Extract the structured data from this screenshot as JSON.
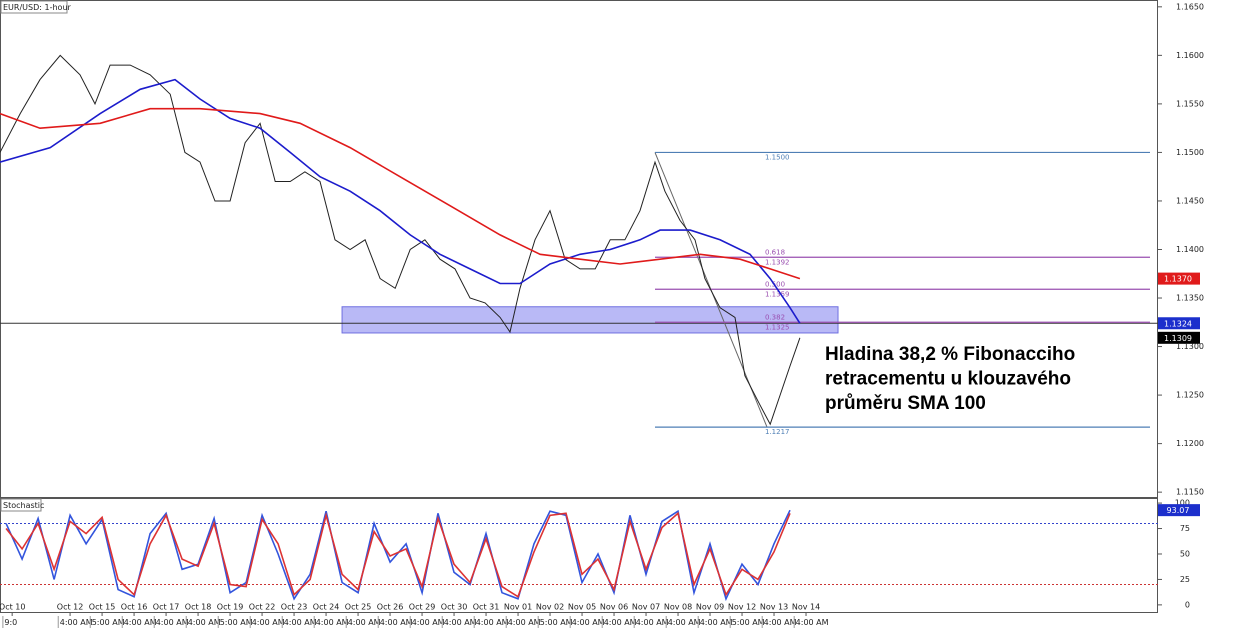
{
  "chart_data": [
    {
      "type": "line",
      "title": "EUR/USD: 1-hour",
      "xlim": [
        -0.19,
        36
      ],
      "xticks": [
        {
          "value": 0.19,
          "label": "Oct 10"
        },
        {
          "value": 2,
          "label": "Oct 12"
        },
        {
          "value": 3,
          "label": "Oct 15"
        },
        {
          "value": 4,
          "label": "Oct 16"
        },
        {
          "value": 5,
          "label": "Oct 17"
        },
        {
          "value": 6,
          "label": "Oct 18"
        },
        {
          "value": 7,
          "label": "Oct 19"
        },
        {
          "value": 8,
          "label": "Oct 22"
        },
        {
          "value": 9,
          "label": "Oct 23"
        },
        {
          "value": 10,
          "label": "Oct 24"
        },
        {
          "value": 11,
          "label": "Oct 25"
        },
        {
          "value": 12,
          "label": "Oct 26"
        },
        {
          "value": 13,
          "label": "Oct 29"
        },
        {
          "value": 14,
          "label": "Oct 30"
        },
        {
          "value": 15,
          "label": "Oct 31"
        },
        {
          "value": 16,
          "label": "Nov 01"
        },
        {
          "value": 17,
          "label": "Nov 02"
        },
        {
          "value": 18,
          "label": "Nov 05"
        },
        {
          "value": 19,
          "label": "Nov 06"
        },
        {
          "value": 20,
          "label": "Nov 07"
        },
        {
          "value": 21,
          "label": "Nov 08"
        },
        {
          "value": 22,
          "label": "Nov 09"
        },
        {
          "value": 23,
          "label": "Nov 12"
        },
        {
          "value": 24,
          "label": "Nov 13"
        },
        {
          "value": 25,
          "label": "Nov 14"
        }
      ],
      "time_ticks": [
        {
          "value": -0.1,
          "label": "9:0"
        },
        {
          "value": 1.63,
          "label": "4:00 AM"
        },
        {
          "value": 2.63,
          "label": "5:00 AM"
        },
        {
          "value": 3.63,
          "label": "4:00 AM"
        },
        {
          "value": 4.63,
          "label": "4:00 AM"
        },
        {
          "value": 5.63,
          "label": "4:00 AM"
        },
        {
          "value": 6.63,
          "label": "5:00 AM"
        },
        {
          "value": 7.63,
          "label": "4:00 AM"
        },
        {
          "value": 8.63,
          "label": "4:00 AM"
        },
        {
          "value": 9.63,
          "label": "4:00 AM"
        },
        {
          "value": 10.63,
          "label": "4:00 AM"
        },
        {
          "value": 11.63,
          "label": "4:00 AM"
        },
        {
          "value": 12.63,
          "label": "4:00 AM"
        },
        {
          "value": 13.63,
          "label": "4:00 AM"
        },
        {
          "value": 14.63,
          "label": "4:00 AM"
        },
        {
          "value": 15.63,
          "label": "4:00 AM"
        },
        {
          "value": 16.63,
          "label": "5:00 AM"
        },
        {
          "value": 17.63,
          "label": "4:00 AM"
        },
        {
          "value": 18.63,
          "label": "4:00 AM"
        },
        {
          "value": 19.63,
          "label": "4:00 AM"
        },
        {
          "value": 20.63,
          "label": "4:00 AM"
        },
        {
          "value": 21.63,
          "label": "4:00 AM"
        },
        {
          "value": 22.63,
          "label": "5:00 AM"
        },
        {
          "value": 23.63,
          "label": "4:00 AM"
        },
        {
          "value": 24.63,
          "label": "4:00 AM"
        }
      ],
      "ylim": [
        1.1145,
        1.1656
      ],
      "yticks": [
        {
          "value": 1.115,
          "label": "1.1150"
        },
        {
          "value": 1.12,
          "label": "1.1200"
        },
        {
          "value": 1.125,
          "label": "1.1250"
        },
        {
          "value": 1.13,
          "label": "1.1300"
        },
        {
          "value": 1.135,
          "label": "1.1350"
        },
        {
          "value": 1.14,
          "label": "1.1400"
        },
        {
          "value": 1.145,
          "label": "1.1450"
        },
        {
          "value": 1.15,
          "label": "1.1500"
        },
        {
          "value": 1.155,
          "label": "1.1550"
        },
        {
          "value": 1.16,
          "label": "1.1600"
        },
        {
          "value": 1.165,
          "label": "1.1650"
        }
      ],
      "series": [
        {
          "color": "#222222",
          "x": [
            -0.19,
            0.44,
            1.06,
            1.69,
            2.31,
            2.78,
            3.25,
            3.88,
            4.5,
            5.13,
            5.59,
            6.06,
            6.53,
            7,
            7.47,
            7.94,
            8.41,
            8.88,
            9.34,
            9.81,
            10.28,
            10.75,
            11.22,
            11.69,
            12.16,
            12.63,
            13.09,
            13.56,
            14.03,
            14.5,
            14.97,
            15.44,
            15.75,
            16.06,
            16.53,
            17,
            17.47,
            17.94,
            18.41,
            18.88,
            19.34,
            19.81,
            20.28,
            20.59,
            21.06,
            21.53,
            21.84,
            22.31,
            22.78,
            23.09,
            23.56,
            23.88,
            24.19,
            24.5,
            24.81
          ],
          "values": [
            1.15,
            1.154,
            1.1575,
            1.16,
            1.158,
            1.155,
            1.159,
            1.159,
            1.158,
            1.156,
            1.15,
            1.149,
            1.145,
            1.145,
            1.151,
            1.153,
            1.147,
            1.147,
            1.148,
            1.147,
            1.141,
            1.14,
            1.141,
            1.137,
            1.136,
            1.14,
            1.141,
            1.139,
            1.138,
            1.135,
            1.1345,
            1.133,
            1.1315,
            1.136,
            1.141,
            1.144,
            1.139,
            1.138,
            1.138,
            1.141,
            1.141,
            1.144,
            1.149,
            1.146,
            1.143,
            1.141,
            1.137,
            1.134,
            1.133,
            1.127,
            1.124,
            1.122,
            1.125,
            1.128,
            1.1309
          ]
        },
        {
          "color": "#1c1ccc",
          "x": [
            -0.19,
            1.38,
            2.94,
            4.19,
            5.28,
            6.06,
            7,
            7.94,
            8.88,
            9.81,
            10.75,
            11.69,
            12.63,
            13.56,
            14.5,
            15.44,
            16.06,
            17,
            17.94,
            18.88,
            19.81,
            20.44,
            21.38,
            22.31,
            23.25,
            23.88,
            24.5,
            24.81
          ],
          "values": [
            1.149,
            1.1505,
            1.154,
            1.1565,
            1.1575,
            1.1555,
            1.1535,
            1.1525,
            1.15,
            1.1475,
            1.146,
            1.144,
            1.1415,
            1.1395,
            1.138,
            1.1365,
            1.1365,
            1.1385,
            1.1395,
            1.14,
            1.141,
            1.142,
            1.142,
            1.141,
            1.1395,
            1.137,
            1.134,
            1.1324
          ]
        },
        {
          "color": "#e01a1a",
          "x": [
            -0.19,
            1.06,
            2.94,
            4.5,
            6.06,
            7.94,
            9.19,
            10.75,
            12.31,
            13.88,
            15.44,
            16.69,
            17.94,
            19.19,
            20.44,
            21.69,
            22.94,
            23.88,
            24.81
          ],
          "values": [
            1.154,
            1.1525,
            1.153,
            1.1545,
            1.1545,
            1.154,
            1.153,
            1.1505,
            1.1475,
            1.1445,
            1.1415,
            1.1395,
            1.139,
            1.1385,
            1.139,
            1.1395,
            1.139,
            1.138,
            1.137
          ]
        }
      ],
      "fib": {
        "trend_x": [
          20.28,
          23.78
        ],
        "trend_values": [
          1.15,
          1.1217
        ],
        "levels": [
          {
            "value": 1.15,
            "label": "1.1500",
            "color": "#4f7fb5"
          },
          {
            "ratio": "0.618",
            "value": 1.1392,
            "label": "1.1392",
            "color": "#9a4fb0"
          },
          {
            "ratio": "0.500",
            "value": 1.1359,
            "label": "1.1359",
            "color": "#9a4fb0"
          },
          {
            "ratio": "0.382",
            "value": 1.1325,
            "label": "1.1325",
            "color": "#9a4fb0"
          },
          {
            "value": 1.1217,
            "label": "1.1217",
            "color": "#4f7fb5"
          }
        ]
      },
      "zone": {
        "x": [
          10.5,
          26
        ],
        "values": [
          1.1314,
          1.1341
        ],
        "color": "#8a8af0"
      },
      "price_tags": [
        {
          "value": 1.137,
          "label": "1.1370",
          "color": "#e01a1a"
        },
        {
          "value": 1.1324,
          "label": "1.1324",
          "color": "#1c2fcc",
          "line": true
        },
        {
          "value": 1.1309,
          "label": "1.1309",
          "color": "#000000"
        }
      ],
      "annotation": [
        "Hladina 38,2 % Fibonacciho",
        "retracementu u klouzavého",
        "průměru SMA 100"
      ]
    },
    {
      "type": "line",
      "title": "Stochastic",
      "ylim": [
        -7,
        105
      ],
      "yticks": [
        0,
        25,
        50,
        75,
        100
      ],
      "levels": [
        {
          "value": 80,
          "color": "#3344cc"
        },
        {
          "value": 20,
          "color": "#cc3333"
        }
      ],
      "x": [
        0,
        0.5,
        1,
        1.5,
        2,
        2.5,
        3,
        3.5,
        4,
        4.5,
        5,
        5.5,
        6,
        6.5,
        7,
        7.5,
        8,
        8.5,
        9,
        9.5,
        10,
        10.5,
        11,
        11.5,
        12,
        12.5,
        13,
        13.5,
        14,
        14.5,
        15,
        15.5,
        16,
        16.5,
        17,
        17.5,
        18,
        18.5,
        19,
        19.5,
        20,
        20.5,
        21,
        21.5,
        22,
        22.5,
        23,
        23.5,
        24,
        24.5
      ],
      "series": [
        {
          "color": "#3355dd",
          "values": [
            80,
            45,
            85,
            25,
            88,
            60,
            84,
            15,
            8,
            70,
            90,
            35,
            40,
            85,
            12,
            22,
            88,
            50,
            6,
            30,
            92,
            22,
            12,
            80,
            42,
            60,
            12,
            90,
            32,
            20,
            70,
            12,
            6,
            60,
            92,
            88,
            22,
            50,
            12,
            88,
            30,
            82,
            92,
            12,
            60,
            6,
            40,
            20,
            60,
            93
          ]
        },
        {
          "color": "#dd3333",
          "values": [
            75,
            55,
            80,
            35,
            82,
            70,
            86,
            25,
            10,
            60,
            88,
            45,
            38,
            80,
            20,
            18,
            84,
            60,
            10,
            25,
            88,
            30,
            15,
            72,
            48,
            55,
            18,
            85,
            40,
            22,
            65,
            18,
            8,
            52,
            88,
            90,
            30,
            45,
            15,
            82,
            35,
            76,
            90,
            20,
            55,
            10,
            35,
            25,
            52,
            90
          ]
        }
      ],
      "value_tag": {
        "value": 93.07,
        "color": "#1c2fcc"
      }
    }
  ]
}
